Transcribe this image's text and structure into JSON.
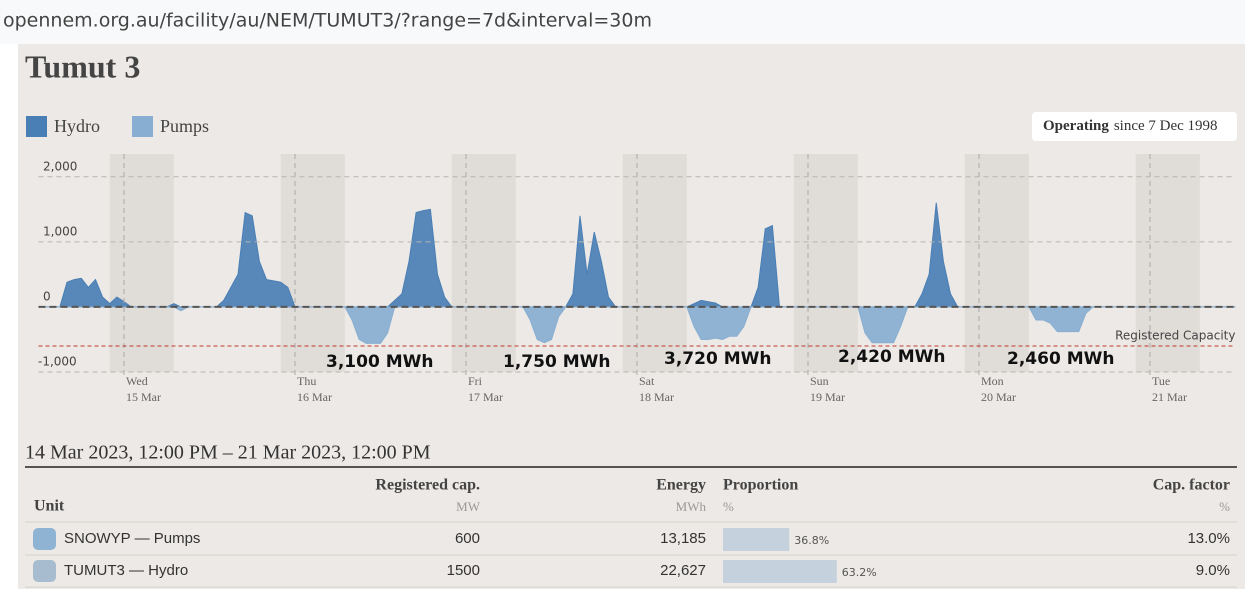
{
  "browser": {
    "url": "opennem.org.au/facility/au/NEM/TUMUT3/?range=7d&interval=30m"
  },
  "facility": {
    "title": "Tumut 3",
    "status": "Operating",
    "since": "since 7 Dec 1998"
  },
  "chart_data": {
    "type": "area",
    "x": [
      "2023-03-14 12:00",
      "2023-03-14 13:00",
      "2023-03-14 14:00",
      "2023-03-14 15:00",
      "2023-03-14 16:00",
      "2023-03-14 17:00",
      "2023-03-14 18:00",
      "2023-03-14 19:00",
      "2023-03-14 20:00",
      "2023-03-14 21:00",
      "2023-03-14 22:00",
      "2023-03-14 23:00",
      "2023-03-15 00:00",
      "2023-03-15 01:00",
      "2023-03-15 02:00",
      "2023-03-15 03:00",
      "2023-03-15 04:00",
      "2023-03-15 05:00",
      "2023-03-15 06:00",
      "2023-03-15 07:00",
      "2023-03-15 08:00",
      "2023-03-15 09:00",
      "2023-03-15 10:00",
      "2023-03-15 11:00",
      "2023-03-15 12:00",
      "2023-03-15 13:00",
      "2023-03-15 14:00",
      "2023-03-15 15:00",
      "2023-03-15 16:00",
      "2023-03-15 17:00",
      "2023-03-15 18:00",
      "2023-03-15 19:00",
      "2023-03-15 20:00",
      "2023-03-15 21:00",
      "2023-03-15 22:00",
      "2023-03-15 23:00",
      "2023-03-16 00:00",
      "2023-03-16 01:00",
      "2023-03-16 02:00",
      "2023-03-16 03:00",
      "2023-03-16 04:00",
      "2023-03-16 05:00",
      "2023-03-16 06:00",
      "2023-03-16 07:00",
      "2023-03-16 08:00",
      "2023-03-16 09:00",
      "2023-03-16 10:00",
      "2023-03-16 11:00",
      "2023-03-16 12:00",
      "2023-03-16 13:00",
      "2023-03-16 14:00",
      "2023-03-16 15:00",
      "2023-03-16 16:00",
      "2023-03-16 17:00",
      "2023-03-16 18:00",
      "2023-03-16 19:00",
      "2023-03-16 20:00",
      "2023-03-16 21:00",
      "2023-03-16 22:00",
      "2023-03-16 23:00",
      "2023-03-17 00:00",
      "2023-03-17 01:00",
      "2023-03-17 02:00",
      "2023-03-17 03:00",
      "2023-03-17 04:00",
      "2023-03-17 05:00",
      "2023-03-17 06:00",
      "2023-03-17 07:00",
      "2023-03-17 08:00",
      "2023-03-17 09:00",
      "2023-03-17 10:00",
      "2023-03-17 11:00",
      "2023-03-17 12:00",
      "2023-03-17 13:00",
      "2023-03-17 14:00",
      "2023-03-17 15:00",
      "2023-03-17 16:00",
      "2023-03-17 17:00",
      "2023-03-17 18:00",
      "2023-03-17 19:00",
      "2023-03-17 20:00",
      "2023-03-17 21:00",
      "2023-03-17 22:00",
      "2023-03-17 23:00",
      "2023-03-18 00:00",
      "2023-03-18 01:00",
      "2023-03-18 02:00",
      "2023-03-18 03:00",
      "2023-03-18 04:00",
      "2023-03-18 05:00",
      "2023-03-18 06:00",
      "2023-03-18 07:00",
      "2023-03-18 08:00",
      "2023-03-18 09:00",
      "2023-03-18 10:00",
      "2023-03-18 11:00",
      "2023-03-18 12:00",
      "2023-03-18 13:00",
      "2023-03-18 14:00",
      "2023-03-18 15:00",
      "2023-03-18 16:00",
      "2023-03-18 17:00",
      "2023-03-18 18:00",
      "2023-03-18 19:00",
      "2023-03-18 20:00",
      "2023-03-18 21:00",
      "2023-03-18 22:00",
      "2023-03-18 23:00",
      "2023-03-19 00:00",
      "2023-03-19 01:00",
      "2023-03-19 02:00",
      "2023-03-19 03:00",
      "2023-03-19 04:00",
      "2023-03-19 05:00",
      "2023-03-19 06:00",
      "2023-03-19 07:00",
      "2023-03-19 08:00",
      "2023-03-19 09:00",
      "2023-03-19 10:00",
      "2023-03-19 11:00",
      "2023-03-19 12:00",
      "2023-03-19 13:00",
      "2023-03-19 14:00",
      "2023-03-19 15:00",
      "2023-03-19 16:00",
      "2023-03-19 17:00",
      "2023-03-19 18:00",
      "2023-03-19 19:00",
      "2023-03-19 20:00",
      "2023-03-19 21:00",
      "2023-03-19 22:00",
      "2023-03-19 23:00",
      "2023-03-20 00:00",
      "2023-03-20 01:00",
      "2023-03-20 02:00",
      "2023-03-20 03:00",
      "2023-03-20 04:00",
      "2023-03-20 05:00",
      "2023-03-20 06:00",
      "2023-03-20 07:00",
      "2023-03-20 08:00",
      "2023-03-20 09:00",
      "2023-03-20 10:00",
      "2023-03-20 11:00",
      "2023-03-20 12:00",
      "2023-03-20 13:00",
      "2023-03-20 14:00",
      "2023-03-20 15:00",
      "2023-03-20 16:00",
      "2023-03-20 17:00",
      "2023-03-20 18:00",
      "2023-03-20 19:00",
      "2023-03-20 20:00",
      "2023-03-20 21:00",
      "2023-03-20 22:00",
      "2023-03-20 23:00",
      "2023-03-21 00:00",
      "2023-03-21 01:00",
      "2023-03-21 02:00",
      "2023-03-21 03:00",
      "2023-03-21 04:00",
      "2023-03-21 05:00",
      "2023-03-21 06:00",
      "2023-03-21 07:00",
      "2023-03-21 08:00",
      "2023-03-21 09:00",
      "2023-03-21 10:00",
      "2023-03-21 11:00",
      "2023-03-21 12:00"
    ],
    "xlim": [
      "2023-03-14 12:00",
      "2023-03-21 12:00"
    ],
    "xticks": [
      {
        "value": "2023-03-15 00:00",
        "label": "Wed",
        "sublabel": "15 Mar"
      },
      {
        "value": "2023-03-16 00:00",
        "label": "Thu",
        "sublabel": "16 Mar"
      },
      {
        "value": "2023-03-17 00:00",
        "label": "Fri",
        "sublabel": "17 Mar"
      },
      {
        "value": "2023-03-18 00:00",
        "label": "Sat",
        "sublabel": "18 Mar"
      },
      {
        "value": "2023-03-19 00:00",
        "label": "Sun",
        "sublabel": "19 Mar"
      },
      {
        "value": "2023-03-20 00:00",
        "label": "Mon",
        "sublabel": "20 Mar"
      },
      {
        "value": "2023-03-21 00:00",
        "label": "Tue",
        "sublabel": "21 Mar"
      }
    ],
    "ylim": [
      -1000,
      2350
    ],
    "yticks": [
      {
        "value": -1000,
        "label": "-1,000"
      },
      0,
      {
        "value": 1000,
        "label": "1,000"
      },
      {
        "value": 2000,
        "label": "2,000"
      }
    ],
    "grid": true,
    "series": [
      {
        "name": "Hydro",
        "color": "#4a7fb5",
        "values": [
          0,
          0,
          0,
          0,
          380,
          420,
          440,
          300,
          420,
          150,
          50,
          150,
          80,
          0,
          0,
          0,
          0,
          0,
          0,
          50,
          0,
          0,
          0,
          0,
          0,
          0,
          100,
          300,
          500,
          1450,
          1400,
          700,
          420,
          400,
          380,
          300,
          0,
          0,
          0,
          0,
          0,
          0,
          0,
          0,
          0,
          0,
          0,
          0,
          0,
          0,
          100,
          200,
          700,
          1450,
          1480,
          1500,
          500,
          150,
          0,
          0,
          0,
          0,
          0,
          0,
          0,
          0,
          0,
          0,
          0,
          0,
          0,
          0,
          0,
          0,
          0,
          200,
          1400,
          500,
          1150,
          700,
          150,
          0,
          0,
          0,
          0,
          0,
          0,
          0,
          0,
          0,
          0,
          0,
          50,
          100,
          80,
          60,
          0,
          0,
          0,
          0,
          0,
          300,
          1200,
          1250,
          0,
          0,
          0,
          0,
          0,
          0,
          0,
          0,
          0,
          0,
          0,
          0,
          0,
          0,
          0,
          0,
          0,
          0,
          0,
          0,
          200,
          500,
          1600,
          700,
          200,
          0,
          0,
          0,
          0,
          0,
          0,
          0,
          0,
          0,
          0,
          0,
          0,
          0,
          0,
          0,
          0,
          0,
          0,
          0,
          0,
          0,
          0,
          0,
          0,
          0,
          0,
          0,
          0,
          0,
          0,
          0,
          0,
          0,
          0,
          0,
          0,
          0,
          0,
          0,
          0
        ]
      },
      {
        "name": "Pumps",
        "color": "#88aed1",
        "values": [
          0,
          0,
          0,
          0,
          0,
          0,
          0,
          0,
          0,
          0,
          0,
          0,
          0,
          0,
          0,
          0,
          0,
          0,
          0,
          0,
          -60,
          0,
          0,
          0,
          0,
          0,
          0,
          0,
          0,
          0,
          0,
          0,
          0,
          0,
          0,
          0,
          0,
          0,
          0,
          0,
          0,
          0,
          0,
          0,
          -200,
          -500,
          -560,
          -560,
          -560,
          -400,
          0,
          0,
          0,
          0,
          0,
          0,
          0,
          0,
          0,
          0,
          0,
          0,
          0,
          0,
          0,
          0,
          0,
          0,
          0,
          -200,
          -500,
          -550,
          -500,
          -150,
          0,
          0,
          0,
          0,
          0,
          0,
          0,
          0,
          0,
          0,
          0,
          0,
          0,
          0,
          0,
          0,
          0,
          0,
          -300,
          -500,
          -500,
          -480,
          -500,
          -450,
          -450,
          -300,
          0,
          0,
          0,
          0,
          0,
          0,
          0,
          0,
          0,
          0,
          0,
          0,
          0,
          0,
          0,
          0,
          -400,
          -550,
          -550,
          -550,
          -550,
          -300,
          0,
          0,
          0,
          0,
          0,
          0,
          0,
          0,
          0,
          0,
          0,
          0,
          0,
          0,
          0,
          0,
          0,
          0,
          -200,
          -200,
          -250,
          -380,
          -380,
          -380,
          -380,
          -100,
          0,
          0,
          0,
          0,
          0,
          0,
          0,
          0,
          0,
          0,
          0,
          0,
          0,
          0,
          0,
          0,
          0,
          0,
          0,
          0,
          0
        ]
      }
    ],
    "reference_line": {
      "value": -600,
      "label": "Registered Capacity",
      "color": "#c0392b"
    },
    "annotations": [
      {
        "text": "3,100 MWh"
      },
      {
        "text": "1,750 MWh"
      },
      {
        "text": "3,720 MWh"
      },
      {
        "text": "2,420 MWh"
      },
      {
        "text": "2,460 MWh"
      }
    ]
  },
  "summary": {
    "range": "14 Mar 2023, 12:00 PM – 21 Mar 2023, 12:00 PM",
    "columns": [
      {
        "label": "Unit"
      },
      {
        "label": "Registered cap.",
        "unit": "MW"
      },
      {
        "label": "Energy",
        "unit": "MWh"
      },
      {
        "label": "Proportion",
        "unit": "%"
      },
      {
        "label": "Cap. factor",
        "unit": "%"
      }
    ],
    "rows": [
      {
        "swatch": "#8fb3d3",
        "unit": "SNOWYP — Pumps",
        "capacity": "600",
        "energy": "13,185",
        "proportion": {
          "value": 36.8,
          "label": "36.8%"
        },
        "cap_factor": "13.0%"
      },
      {
        "swatch": "#a7bccf",
        "unit": "TUMUT3 — Hydro",
        "capacity": "1500",
        "energy": "22,627",
        "proportion": {
          "value": 63.2,
          "label": "63.2%"
        },
        "cap_factor": "9.0%"
      }
    ]
  }
}
